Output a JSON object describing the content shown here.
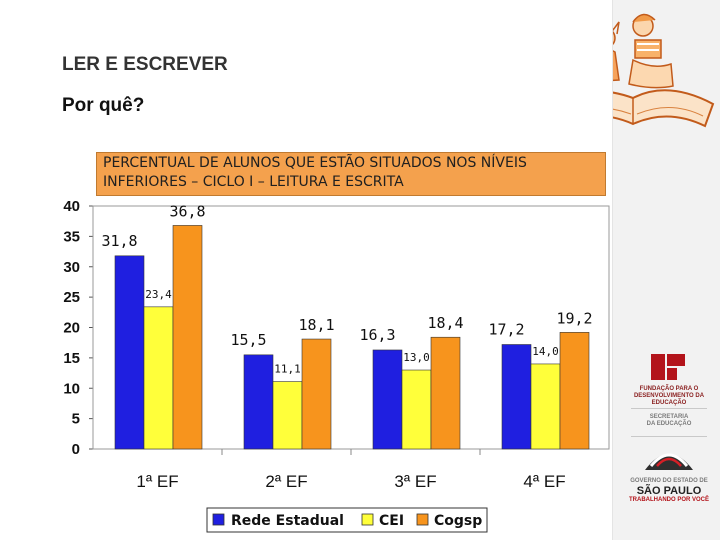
{
  "slide": {
    "title": "LER E ESCREVER",
    "subtitle": "Por quê?",
    "chart_header": "PERCENTUAL DE ALUNOS QUE ESTÃO SITUADOS NOS NÍVEIS INFERIORES – CICLO I – LEITURA E ESCRITA"
  },
  "sidebar": {
    "fde_logo": {
      "line1": "FUNDAÇÃO PARA O",
      "line2": "DESENVOLVIMENTO DA",
      "line3": "EDUCAÇÃO"
    },
    "secretaria": {
      "line1": "SECRETARIA",
      "line2": "DA EDUCAÇÃO"
    },
    "governo": {
      "line1": "GOVERNO DO ESTADO DE",
      "line2": "SÃO PAULO",
      "line3": "TRABALHANDO POR VOCÊ"
    }
  },
  "colors": {
    "rede_estadual": "#1f1fe0",
    "cei": "#ffff3a",
    "cogsp": "#f7941d",
    "header_fill": "#f4a14d"
  },
  "chart_data": {
    "type": "bar",
    "categories": [
      "1ª EF",
      "2ª EF",
      "3ª EF",
      "4ª EF"
    ],
    "series": [
      {
        "name": "Rede Estadual",
        "values": [
          31.8,
          15.5,
          16.3,
          17.2
        ],
        "labels": [
          "31,8",
          "15,5",
          "16,3",
          "17,2"
        ]
      },
      {
        "name": "CEI",
        "values": [
          23.4,
          11.1,
          13.0,
          14.0
        ],
        "labels": [
          "23,4",
          "11,1",
          "13,0",
          "14,0"
        ]
      },
      {
        "name": "Cogsp",
        "values": [
          36.8,
          18.1,
          18.4,
          19.2
        ],
        "labels": [
          "36,8",
          "18,1",
          "18,4",
          "19,2"
        ]
      }
    ],
    "ylim": [
      0,
      40
    ],
    "yticks": [
      "0",
      "5",
      "10",
      "15",
      "20",
      "25",
      "30",
      "35",
      "40"
    ],
    "grid": false,
    "legend_position": "bottom"
  }
}
